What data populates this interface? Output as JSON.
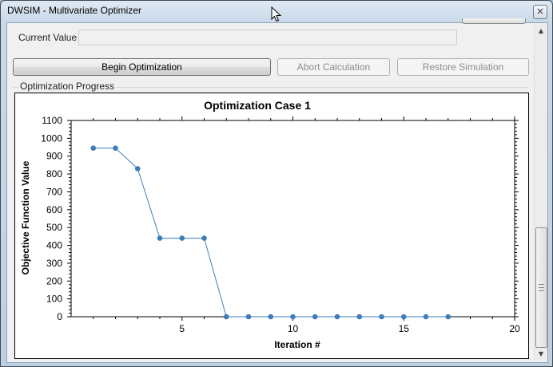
{
  "window": {
    "title": "DWSIM - Multivariate Optimizer",
    "close_glyph": "×"
  },
  "current_value": {
    "label": "Current Value",
    "value": ""
  },
  "buttons": {
    "begin": "Begin Optimization",
    "abort": "Abort Calculation",
    "restore": "Restore Simulation"
  },
  "progress_group": {
    "label": "Optimization Progress"
  },
  "icons": {
    "close": "close-icon",
    "cursor": "mouse-cursor-icon",
    "scroll_up": "scroll-up-icon",
    "scroll_down": "scroll-down-icon"
  },
  "colors": {
    "series": "#3e7eb8",
    "disabled_text": "#8d8d8d"
  },
  "chart_data": {
    "type": "line",
    "title": "Optimization Case 1",
    "xlabel": "Iteration #",
    "ylabel": "Objective Function Value",
    "xlim": [
      0,
      20
    ],
    "ylim": [
      0,
      1100
    ],
    "xticks": [
      5,
      10,
      15,
      20
    ],
    "yticks": [
      0,
      100,
      200,
      300,
      400,
      500,
      600,
      700,
      800,
      900,
      1000,
      1100
    ],
    "grid": false,
    "legend": "none",
    "series": [
      {
        "x": [
          1,
          2,
          3,
          4,
          5,
          6,
          7,
          8,
          9,
          10,
          11,
          12,
          13,
          14,
          15,
          16,
          17
        ],
        "values": [
          945,
          945,
          830,
          440,
          440,
          440,
          0,
          0,
          0,
          0,
          0,
          0,
          0,
          0,
          0,
          0,
          0
        ]
      }
    ]
  }
}
